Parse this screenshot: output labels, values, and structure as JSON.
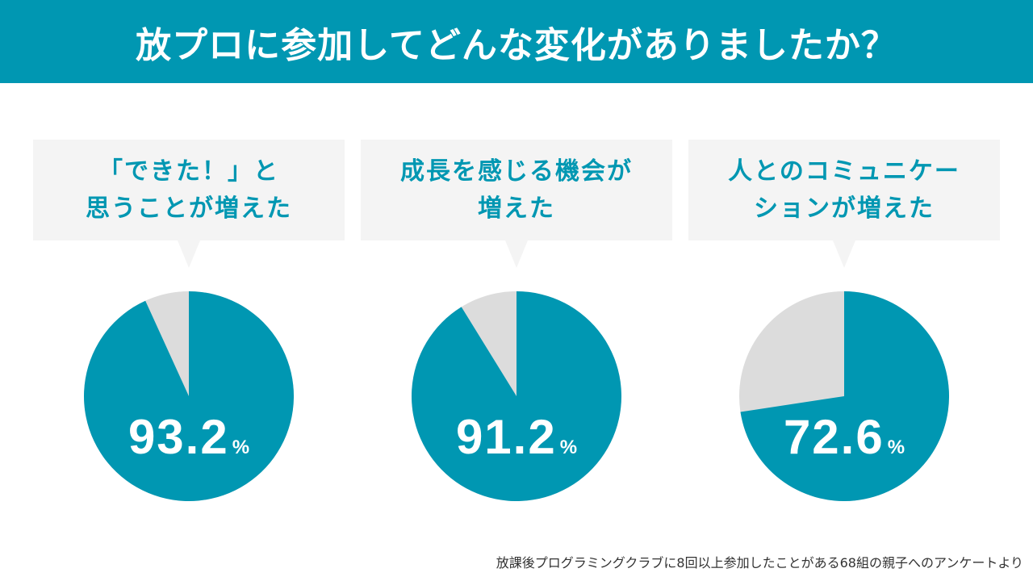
{
  "header": {
    "title": "放プロに参加してどんな変化がありましたか？"
  },
  "colors": {
    "accent": "#0097B2",
    "remainder": "#DCDCDC",
    "bubble": "#F4F4F4"
  },
  "chart_data": [
    {
      "type": "pie",
      "caption_lines": [
        "「できた！」と",
        "思うことが増えた"
      ],
      "value": 93.2,
      "value_label": "93.2",
      "unit": "%"
    },
    {
      "type": "pie",
      "caption_lines": [
        "成長を感じる機会が",
        "増えた"
      ],
      "value": 91.2,
      "value_label": "91.2",
      "unit": "%"
    },
    {
      "type": "pie",
      "caption_lines": [
        "人とのコミュニケー",
        "ションが増えた"
      ],
      "value": 72.6,
      "value_label": "72.6",
      "unit": "%"
    }
  ],
  "footnote": "放課後プログラミングクラブに8回以上参加したことがある68組の親子へのアンケートより"
}
